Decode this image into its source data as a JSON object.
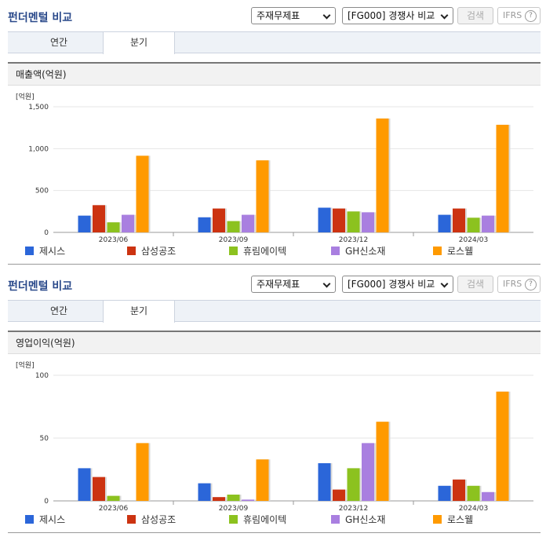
{
  "sections": [
    {
      "title": "펀더멘털 비교",
      "select1": "주재무제표",
      "select2": "[FG000] 경쟁사 비교",
      "search_label": "검색",
      "ifrs_label": "IFRS",
      "help_label": "?",
      "tabs": [
        {
          "label": "연간"
        },
        {
          "label": "분기"
        }
      ],
      "active_tab": 1,
      "chart_title": "매출액(억원)",
      "chart_data": {
        "type": "bar",
        "title": "매출액(억원)",
        "unit_label": "[억원]",
        "categories": [
          "2023/06",
          "2023/09",
          "2023/12",
          "2024/03"
        ],
        "ylim": [
          0,
          1500
        ],
        "yticks": [
          0,
          500,
          1000,
          1500
        ],
        "ytick_labels": [
          "0",
          "500",
          "1,000",
          "1,500"
        ],
        "series": [
          {
            "name": "제시스",
            "color": "#2b66d9",
            "values": [
              200,
              180,
              295,
              210
            ]
          },
          {
            "name": "삼성공조",
            "color": "#cc3311",
            "values": [
              325,
              285,
              285,
              285
            ]
          },
          {
            "name": "휴림에이텍",
            "color": "#8cc21f",
            "values": [
              120,
              135,
              250,
              175
            ]
          },
          {
            "name": "GH신소재",
            "color": "#a97fe0",
            "values": [
              210,
              210,
              240,
              200
            ]
          },
          {
            "name": "로스웰",
            "color": "#ff9a00",
            "values": [
              915,
              860,
              1360,
              1285
            ]
          }
        ]
      }
    },
    {
      "title": "펀더멘털 비교",
      "select1": "주재무제표",
      "select2": "[FG000] 경쟁사 비교",
      "search_label": "검색",
      "ifrs_label": "IFRS",
      "help_label": "?",
      "tabs": [
        {
          "label": "연간"
        },
        {
          "label": "분기"
        }
      ],
      "active_tab": 1,
      "chart_title": "영업이익(억원)",
      "chart_data": {
        "type": "bar",
        "title": "영업이익(억원)",
        "unit_label": "[억원]",
        "categories": [
          "2023/06",
          "2023/09",
          "2023/12",
          "2024/03"
        ],
        "ylim": [
          0,
          100
        ],
        "yticks": [
          0,
          50,
          100
        ],
        "ytick_labels": [
          "0",
          "50",
          "100"
        ],
        "series": [
          {
            "name": "제시스",
            "color": "#2b66d9",
            "values": [
              26,
              14,
              30,
              12
            ]
          },
          {
            "name": "삼성공조",
            "color": "#cc3311",
            "values": [
              19,
              3,
              9,
              17
            ]
          },
          {
            "name": "휴림에이텍",
            "color": "#8cc21f",
            "values": [
              4,
              5,
              26,
              12
            ]
          },
          {
            "name": "GH신소재",
            "color": "#a97fe0",
            "values": [
              0,
              1,
              46,
              7
            ]
          },
          {
            "name": "로스웰",
            "color": "#ff9a00",
            "values": [
              46,
              33,
              63,
              87
            ]
          }
        ]
      }
    }
  ]
}
